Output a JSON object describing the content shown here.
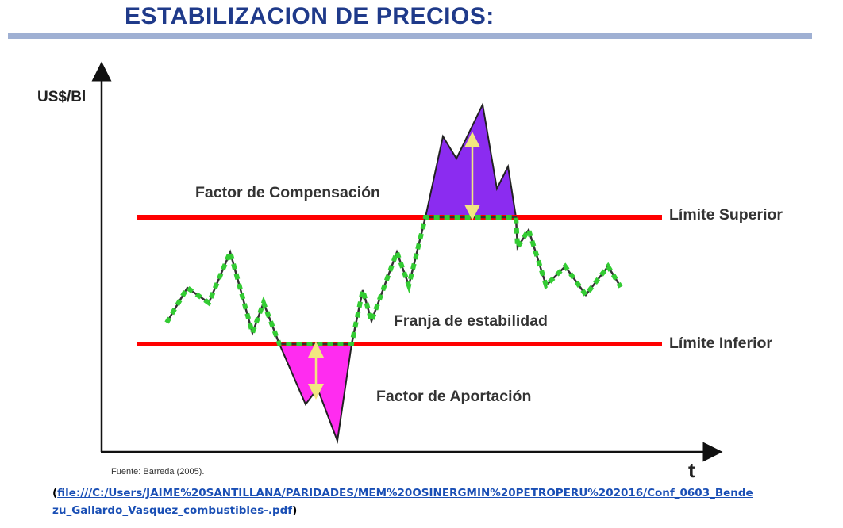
{
  "title": "ESTABILIZACION DE PRECIOS:",
  "colors": {
    "title": "#1f3a8a",
    "title_rule": "#9fb0d3",
    "limit_lines": "#ff0000",
    "price_line": "#333333",
    "price_dashes": "#33cc33",
    "compensation_fill": "#8b2cf0",
    "contribution_fill": "#ff2cf0",
    "arrows": "#f2e680"
  },
  "diagram": {
    "y_axis_label": "US$/Bl",
    "x_axis_label": "t",
    "upper_limit_label": "Límite Superior",
    "lower_limit_label": "Límite Inferior",
    "compensation_label": "Factor de Compensación",
    "stability_band_label": "Franja de estabilidad",
    "contribution_label": "Factor de Aportación",
    "source": "Fuente: Barreda (2005)."
  },
  "footer": {
    "open_paren": "(",
    "link_line1": "file:///C:/Users/JAIME%20SANTILLANA/PARIDADES/MEM%20OSINERGMIN%20PETROPERU%202016/Conf_0603_Bende",
    "link_line2": "zu_Gallardo_Vasquez_combustibles-.pdf",
    "close_paren": ")"
  }
}
